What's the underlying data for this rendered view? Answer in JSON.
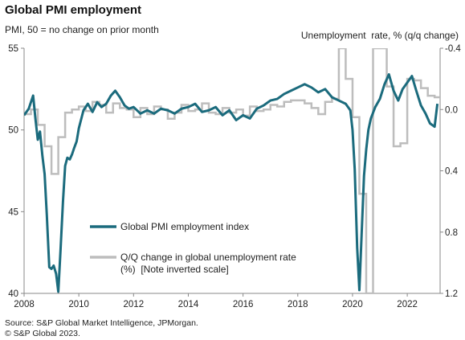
{
  "title": "Global PMI employment",
  "subtitle_left": "PMI, 50 = no change on prior month",
  "subtitle_right": "Unemployment  rate, % (q/q change)",
  "footer": {
    "line1": "Source: S&P Global Market Intelligence, JPMorgan.",
    "line2": "© S&P Global 2023."
  },
  "colors": {
    "pmi": "#1b6b7d",
    "unemployment": "#bdbdbd",
    "axis": "#888888"
  },
  "chart_data": {
    "type": "line",
    "title": "Global PMI employment",
    "left_axis": {
      "ylim": [
        40,
        55
      ],
      "ticks": [
        "40",
        "45",
        "50",
        "55"
      ]
    },
    "right_axis": {
      "ylim": [
        -0.4,
        1.2
      ],
      "inverted": true,
      "ticks": [
        "-0.4",
        "0.0",
        "0.4",
        "0.8",
        "1.2"
      ]
    },
    "x_axis": {
      "xlim": [
        2008.0,
        2023.2
      ],
      "ticks": [
        "2008",
        "2010",
        "2012",
        "2014",
        "2016",
        "2018",
        "2020",
        "2022"
      ]
    },
    "grid": false,
    "legend": [
      "Global PMI employment index",
      "Q/Q change in global unemployment rate",
      "(%)  [Note inverted scale]"
    ],
    "series": [
      {
        "name": "Global PMI employment index",
        "axis": "left",
        "x": [
          2008.0,
          2008.17,
          2008.33,
          2008.42,
          2008.5,
          2008.58,
          2008.67,
          2008.75,
          2008.83,
          2008.92,
          2009.0,
          2009.08,
          2009.17,
          2009.25,
          2009.33,
          2009.42,
          2009.5,
          2009.58,
          2009.67,
          2009.75,
          2009.83,
          2009.92,
          2010.0,
          2010.17,
          2010.33,
          2010.5,
          2010.67,
          2010.83,
          2011.0,
          2011.17,
          2011.33,
          2011.5,
          2011.67,
          2011.83,
          2012.0,
          2012.25,
          2012.5,
          2012.75,
          2013.0,
          2013.25,
          2013.5,
          2013.75,
          2014.0,
          2014.25,
          2014.5,
          2014.75,
          2015.0,
          2015.25,
          2015.5,
          2015.75,
          2016.0,
          2016.25,
          2016.5,
          2016.75,
          2017.0,
          2017.25,
          2017.5,
          2017.75,
          2018.0,
          2018.25,
          2018.5,
          2018.75,
          2019.0,
          2019.25,
          2019.5,
          2019.75,
          2019.92,
          2020.0,
          2020.08,
          2020.17,
          2020.25,
          2020.33,
          2020.42,
          2020.5,
          2020.58,
          2020.67,
          2020.83,
          2021.0,
          2021.17,
          2021.33,
          2021.5,
          2021.67,
          2021.83,
          2022.0,
          2022.17,
          2022.33,
          2022.5,
          2022.67,
          2022.83,
          2023.0,
          2023.1
        ],
        "values": [
          50.9,
          51.3,
          52.1,
          50.6,
          49.4,
          49.9,
          48.4,
          47.3,
          44.8,
          41.6,
          41.5,
          41.7,
          41.2,
          40.1,
          42.6,
          45.6,
          47.8,
          48.3,
          48.2,
          48.5,
          48.9,
          49.3,
          50.1,
          51.2,
          51.6,
          51.1,
          51.7,
          51.4,
          51.6,
          52.1,
          52.4,
          52.0,
          51.5,
          51.3,
          51.4,
          51.0,
          51.2,
          51.0,
          51.3,
          51.2,
          51.0,
          51.3,
          51.4,
          51.6,
          51.1,
          51.2,
          51.4,
          50.9,
          51.2,
          50.6,
          50.9,
          50.7,
          51.3,
          51.5,
          51.8,
          51.9,
          52.2,
          52.4,
          52.6,
          52.8,
          52.6,
          52.3,
          52.5,
          52.0,
          51.8,
          51.6,
          51.2,
          50.0,
          47.6,
          42.8,
          40.2,
          43.5,
          47.2,
          48.8,
          50.0,
          50.7,
          51.4,
          51.9,
          52.8,
          53.4,
          52.4,
          51.8,
          52.5,
          52.9,
          53.3,
          52.4,
          51.5,
          51.0,
          50.4,
          50.2,
          51.6
        ]
      },
      {
        "name": "Q/Q change in global unemployment rate (%) [Note inverted scale]",
        "axis": "right",
        "x": [
          2008.0,
          2008.25,
          2008.5,
          2008.75,
          2009.0,
          2009.25,
          2009.5,
          2009.75,
          2010.0,
          2010.25,
          2010.5,
          2010.75,
          2011.0,
          2011.25,
          2011.5,
          2011.75,
          2012.0,
          2012.25,
          2012.5,
          2012.75,
          2013.0,
          2013.25,
          2013.5,
          2013.75,
          2014.0,
          2014.25,
          2014.5,
          2014.75,
          2015.0,
          2015.25,
          2015.5,
          2015.75,
          2016.0,
          2016.25,
          2016.5,
          2016.75,
          2017.0,
          2017.25,
          2017.5,
          2017.75,
          2018.0,
          2018.25,
          2018.5,
          2018.75,
          2019.0,
          2019.25,
          2019.5,
          2019.75,
          2020.0,
          2020.25,
          2020.5,
          2020.75,
          2021.0,
          2021.25,
          2021.5,
          2021.75,
          2022.0,
          2022.25,
          2022.5,
          2022.75,
          2023.0
        ],
        "values": [
          0.03,
          0.0,
          0.1,
          0.24,
          0.42,
          0.18,
          0.02,
          0.0,
          -0.02,
          0.01,
          -0.05,
          -0.03,
          0.02,
          -0.04,
          -0.01,
          0.0,
          0.05,
          -0.01,
          0.03,
          -0.02,
          0.0,
          0.06,
          0.02,
          -0.03,
          0.01,
          0.0,
          -0.04,
          0.02,
          0.03,
          -0.01,
          0.02,
          0.0,
          0.04,
          -0.02,
          0.01,
          0.0,
          -0.03,
          -0.02,
          -0.05,
          -0.06,
          -0.06,
          -0.04,
          -0.01,
          0.03,
          -0.05,
          -0.07,
          -0.4,
          -0.2,
          0.05,
          0.55,
          1.2,
          -0.4,
          -0.4,
          -0.15,
          0.24,
          0.22,
          -0.2,
          -0.19,
          -0.14,
          -0.09,
          -0.08
        ]
      }
    ]
  }
}
